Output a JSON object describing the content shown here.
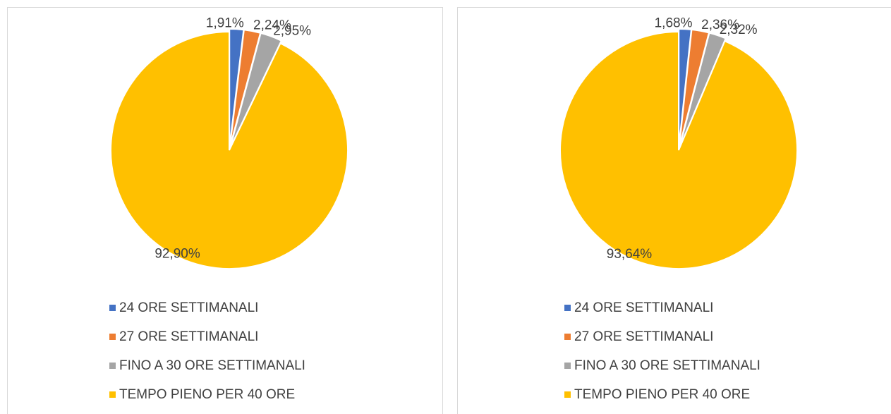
{
  "chart_data": [
    {
      "type": "pie",
      "categories": [
        "24 ORE SETTIMANALI",
        "27 ORE SETTIMANALI",
        "FINO A 30 ORE SETTIMANALI",
        "TEMPO PIENO PER 40 ORE"
      ],
      "values": [
        1.91,
        2.24,
        2.95,
        92.9
      ],
      "value_labels": [
        "1,91%",
        "2,24%",
        "2,95%",
        "92,90%"
      ],
      "colors": [
        "#4472c4",
        "#ed7d31",
        "#a5a5a5",
        "#ffc000"
      ]
    },
    {
      "type": "pie",
      "categories": [
        "24 ORE SETTIMANALI",
        "27 ORE SETTIMANALI",
        "FINO A 30 ORE SETTIMANALI",
        "TEMPO PIENO PER 40 ORE"
      ],
      "values": [
        1.68,
        2.36,
        2.32,
        93.64
      ],
      "value_labels": [
        "1,68%",
        "2,36%",
        "2,32%",
        "93,64%"
      ],
      "colors": [
        "#4472c4",
        "#ed7d31",
        "#a5a5a5",
        "#ffc000"
      ]
    }
  ]
}
